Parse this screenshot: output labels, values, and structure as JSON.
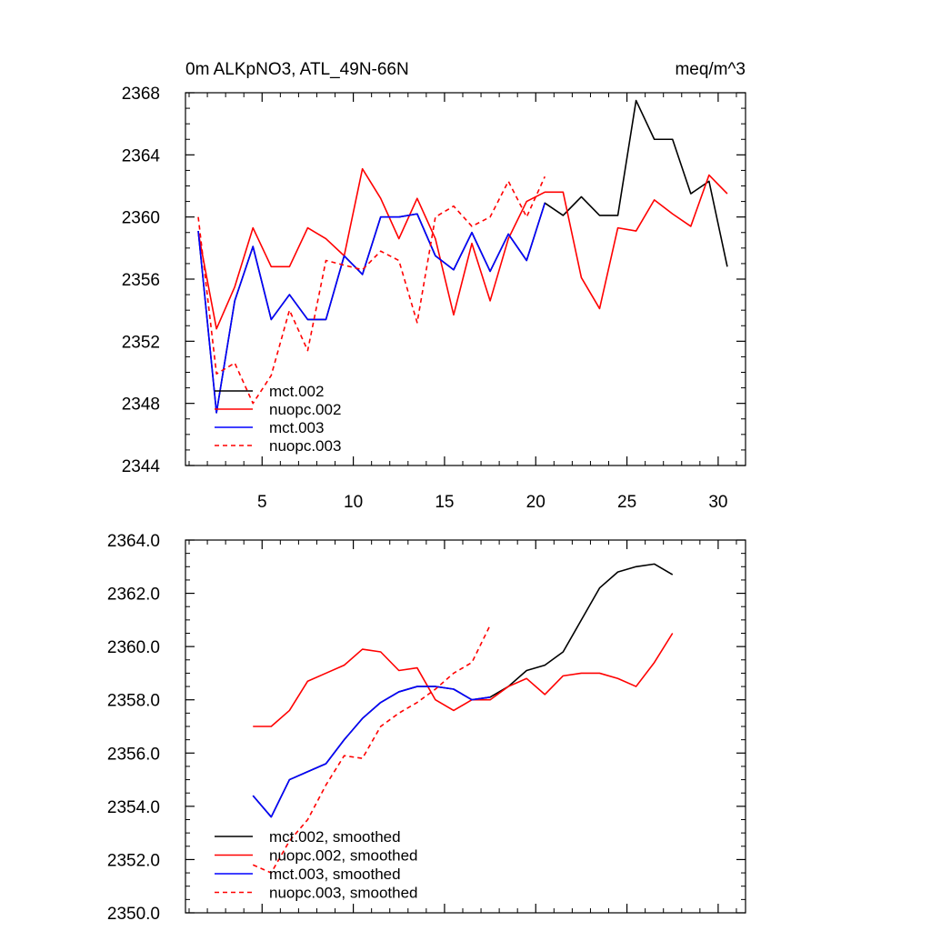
{
  "chart_data": [
    {
      "type": "line",
      "title": "0m ALKpNO3, ATL_49N-66N",
      "units": "meq/m^3",
      "xlabel": "",
      "ylabel": "",
      "xlim": [
        0.8,
        31.5
      ],
      "ylim": [
        2344,
        2368
      ],
      "xticks": [
        5,
        10,
        15,
        20,
        25,
        30
      ],
      "xtick_labels": [
        "5",
        "10",
        "15",
        "20",
        "25",
        "30"
      ],
      "yticks": [
        2344,
        2348,
        2352,
        2356,
        2360,
        2364,
        2368
      ],
      "ytick_labels": [
        "2344",
        "2348",
        "2352",
        "2356",
        "2360",
        "2364",
        "2368"
      ],
      "legend_position": "bottom-left",
      "series": [
        {
          "name": "mct.002",
          "color": "#000000",
          "dashed": false,
          "x": [
            1.5,
            2.5,
            3.5,
            4.5,
            5.5,
            6.5,
            7.5,
            8.5,
            9.5,
            10.5,
            11.5,
            12.5,
            13.5,
            14.5,
            15.5,
            16.5,
            17.5,
            18.5,
            19.5,
            20.5,
            21.5,
            22.5,
            23.5,
            24.5,
            25.5,
            26.5,
            27.5,
            28.5,
            29.5,
            30.5
          ],
          "values": [
            2359.1,
            2347.4,
            2354.6,
            2358.1,
            2353.4,
            2355.0,
            2353.4,
            2353.4,
            2357.5,
            2356.3,
            2360.0,
            2360.0,
            2360.2,
            2357.5,
            2356.6,
            2359.0,
            2356.5,
            2358.9,
            2357.2,
            2360.9,
            2360.1,
            2361.3,
            2360.1,
            2360.1,
            2367.5,
            2365.0,
            2365.0,
            2361.5,
            2362.3,
            2356.8
          ]
        },
        {
          "name": "nuopc.002",
          "color": "#ff0000",
          "dashed": false,
          "x": [
            1.5,
            2.5,
            3.5,
            4.5,
            5.5,
            6.5,
            7.5,
            8.5,
            9.5,
            10.5,
            11.5,
            12.5,
            13.5,
            14.5,
            15.5,
            16.5,
            17.5,
            18.5,
            19.5,
            20.5,
            21.5,
            22.5,
            23.5,
            24.5,
            25.5,
            26.5,
            27.5,
            28.5,
            29.5,
            30.5
          ],
          "values": [
            2359.0,
            2352.8,
            2355.5,
            2359.3,
            2356.8,
            2356.8,
            2359.3,
            2358.6,
            2357.5,
            2363.1,
            2361.2,
            2358.6,
            2361.2,
            2358.6,
            2353.7,
            2358.3,
            2354.6,
            2358.6,
            2361.0,
            2361.6,
            2361.6,
            2356.1,
            2354.1,
            2359.3,
            2359.1,
            2361.1,
            2360.2,
            2359.4,
            2362.7,
            2361.5
          ]
        },
        {
          "name": "mct.003",
          "color": "#0000ff",
          "dashed": false,
          "x": [
            1.5,
            2.5,
            3.5,
            4.5,
            5.5,
            6.5,
            7.5,
            8.5,
            9.5,
            10.5,
            11.5,
            12.5,
            13.5,
            14.5,
            15.5,
            16.5,
            17.5,
            18.5,
            19.5,
            20.5
          ],
          "values": [
            2359.1,
            2347.4,
            2354.6,
            2358.1,
            2353.4,
            2355.0,
            2353.4,
            2353.4,
            2357.5,
            2356.3,
            2360.0,
            2360.0,
            2360.2,
            2357.5,
            2356.6,
            2359.0,
            2356.5,
            2358.9,
            2357.2,
            2360.9
          ]
        },
        {
          "name": "nuopc.003",
          "color": "#ff0000",
          "dashed": true,
          "x": [
            1.5,
            2.5,
            3.5,
            4.5,
            5.5,
            6.5,
            7.5,
            8.5,
            9.5,
            10.5,
            11.5,
            12.5,
            13.5,
            14.5,
            15.5,
            16.5,
            17.5,
            18.5,
            19.5,
            20.5
          ],
          "values": [
            2360.0,
            2349.9,
            2350.6,
            2348.0,
            2349.8,
            2354.0,
            2351.4,
            2357.2,
            2356.9,
            2356.6,
            2357.8,
            2357.2,
            2353.2,
            2360.0,
            2360.7,
            2359.4,
            2360.0,
            2362.3,
            2360.0,
            2362.6
          ]
        }
      ]
    },
    {
      "type": "line",
      "title": "",
      "xlabel": "",
      "ylabel": "",
      "xlim": [
        0.8,
        31.5
      ],
      "ylim": [
        2350.0,
        2364.0
      ],
      "xticks": [
        5,
        10,
        15,
        20,
        25,
        30
      ],
      "yticks": [
        2350.0,
        2352.0,
        2354.0,
        2356.0,
        2358.0,
        2360.0,
        2362.0,
        2364.0
      ],
      "ytick_labels": [
        "2350.0",
        "2352.0",
        "2354.0",
        "2356.0",
        "2358.0",
        "2360.0",
        "2362.0",
        "2364.0"
      ],
      "legend_position": "bottom-left",
      "series": [
        {
          "name": "mct.002, smoothed",
          "color": "#000000",
          "dashed": false,
          "x": [
            4.5,
            5.5,
            6.5,
            7.5,
            8.5,
            9.5,
            10.5,
            11.5,
            12.5,
            13.5,
            14.5,
            15.5,
            16.5,
            17.5,
            18.5,
            19.5,
            20.5,
            21.5,
            22.5,
            23.5,
            24.5,
            25.5,
            26.5,
            27.5
          ],
          "values": [
            2354.4,
            2353.6,
            2355.0,
            2355.3,
            2355.6,
            2356.5,
            2357.3,
            2357.9,
            2358.3,
            2358.5,
            2358.5,
            2358.4,
            2358.0,
            2358.1,
            2358.5,
            2359.1,
            2359.3,
            2359.8,
            2361.0,
            2362.2,
            2362.8,
            2363.0,
            2363.1,
            2362.7
          ]
        },
        {
          "name": "nuopc.002, smoothed",
          "color": "#ff0000",
          "dashed": false,
          "x": [
            4.5,
            5.5,
            6.5,
            7.5,
            8.5,
            9.5,
            10.5,
            11.5,
            12.5,
            13.5,
            14.5,
            15.5,
            16.5,
            17.5,
            18.5,
            19.5,
            20.5,
            21.5,
            22.5,
            23.5,
            24.5,
            25.5,
            26.5,
            27.5
          ],
          "values": [
            2357.0,
            2357.0,
            2357.6,
            2358.7,
            2359.0,
            2359.3,
            2359.9,
            2359.8,
            2359.1,
            2359.2,
            2358.0,
            2357.6,
            2358.0,
            2358.0,
            2358.5,
            2358.8,
            2358.2,
            2358.9,
            2359.0,
            2359.0,
            2358.8,
            2358.5,
            2359.4,
            2360.5
          ]
        },
        {
          "name": "mct.003, smoothed",
          "color": "#0000ff",
          "dashed": false,
          "x": [
            4.5,
            5.5,
            6.5,
            7.5,
            8.5,
            9.5,
            10.5,
            11.5,
            12.5,
            13.5,
            14.5,
            15.5,
            16.5,
            17.5
          ],
          "values": [
            2354.4,
            2353.6,
            2355.0,
            2355.3,
            2355.6,
            2356.5,
            2357.3,
            2357.9,
            2358.3,
            2358.5,
            2358.5,
            2358.4,
            2358.0,
            2358.1
          ]
        },
        {
          "name": "nuopc.003, smoothed",
          "color": "#ff0000",
          "dashed": true,
          "x": [
            4.5,
            5.5,
            6.5,
            7.5,
            8.5,
            9.5,
            10.5,
            11.5,
            12.5,
            13.5,
            14.5,
            15.5,
            16.5,
            17.5
          ],
          "values": [
            2351.8,
            2351.5,
            2352.7,
            2353.5,
            2354.8,
            2355.9,
            2355.8,
            2357.0,
            2357.5,
            2357.9,
            2358.4,
            2359.0,
            2359.4,
            2360.8
          ]
        }
      ]
    }
  ]
}
